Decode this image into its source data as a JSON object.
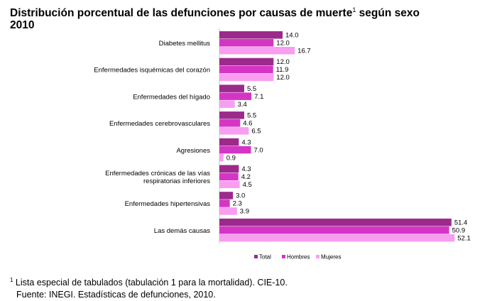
{
  "title": {
    "line1": "Distribución porcentual de las defunciones por causas de muerte",
    "sup": "1",
    "line1_tail": " según sexo",
    "line2": "2010"
  },
  "footnote": {
    "sup": "1",
    "line1": " Lista especial de tabulados (tabulación 1 para la mortalidad). CIE-10.",
    "line2": "Fuente: INEGI. Estadísticas de defunciones, 2010."
  },
  "colors": {
    "Total": "#9c2a8b",
    "Hombres": "#d435c4",
    "Mujeres": "#f79ef0"
  },
  "chart_data": {
    "type": "bar",
    "orientation": "horizontal",
    "categories": [
      [
        "Diabetes mellitus"
      ],
      [
        "Enfermedades isquémicas del corazón"
      ],
      [
        "Enfermedades del hígado"
      ],
      [
        "Enfermedades cerebrovasculares"
      ],
      [
        "Agresiones"
      ],
      [
        "Enfermedades crónicas de las vías",
        "respiratorias inferiores"
      ],
      [
        "Enfermedades hipertensivas"
      ],
      [
        "Las demás causas"
      ]
    ],
    "series": [
      {
        "name": "Total",
        "values": [
          14.0,
          12.0,
          5.5,
          5.5,
          4.3,
          4.3,
          3.0,
          51.4
        ]
      },
      {
        "name": "Hombres",
        "values": [
          12.0,
          11.9,
          7.1,
          4.6,
          7.0,
          4.2,
          2.3,
          50.9
        ]
      },
      {
        "name": "Mujeres",
        "values": [
          16.7,
          12.0,
          3.4,
          6.5,
          0.9,
          4.5,
          3.9,
          52.1
        ]
      }
    ],
    "value_labels": [
      [
        "14.0",
        "12.0",
        "16.7"
      ],
      [
        "12.0",
        "11.9",
        "12.0"
      ],
      [
        "5.5",
        "7.1",
        "3.4"
      ],
      [
        "5.5",
        "4.6",
        "6.5"
      ],
      [
        "4.3",
        "7.0",
        "0.9"
      ],
      [
        "4.3",
        "4.2",
        "4.5"
      ],
      [
        "3.0",
        "2.3",
        "3.9"
      ],
      [
        "51.4",
        "50.9",
        "52.1"
      ]
    ],
    "xlim": [
      0,
      53
    ],
    "grid": false,
    "legend_position": "bottom"
  }
}
